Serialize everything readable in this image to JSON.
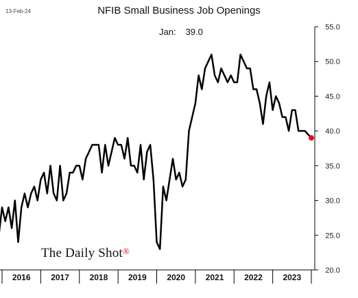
{
  "date_stamp": "13-Feb-24",
  "logo_text": "The Daily Shot",
  "logo_mark": "®",
  "annotation": {
    "label": "Jan:",
    "value": "39.0"
  },
  "colors": {
    "line": "#000000",
    "last_point": "#e0101a",
    "axis": "#000000",
    "text": "#222222"
  },
  "chart_data": {
    "type": "line",
    "title": "NFIB Small Business Job Openings",
    "xlabel": "",
    "ylabel": "",
    "ylim": [
      20,
      55
    ],
    "yticks": [
      20,
      25,
      30,
      35,
      40,
      45,
      50,
      55
    ],
    "ytick_labels": [
      "20.0",
      "25.0",
      "30.0",
      "35.0",
      "40.0",
      "45.0",
      "50.0",
      "55.0"
    ],
    "year_labels": [
      "2016",
      "2017",
      "2018",
      "2019",
      "2020",
      "2021",
      "2022",
      "2023"
    ],
    "x_start": "2016-01",
    "x_end": "2024-01",
    "grid": false,
    "series": [
      {
        "dates": [
          "2015-10",
          "2015-11",
          "2015-12",
          "2016-01",
          "2016-02",
          "2016-03",
          "2016-04",
          "2016-05",
          "2016-06",
          "2016-07",
          "2016-08",
          "2016-09",
          "2016-10",
          "2016-11",
          "2016-12",
          "2017-01",
          "2017-02",
          "2017-03",
          "2017-04",
          "2017-05",
          "2017-06",
          "2017-07",
          "2017-08",
          "2017-09",
          "2017-10",
          "2017-11",
          "2017-12",
          "2018-01",
          "2018-02",
          "2018-03",
          "2018-04",
          "2018-05",
          "2018-06",
          "2018-07",
          "2018-08",
          "2018-09",
          "2018-10",
          "2018-11",
          "2018-12",
          "2019-01",
          "2019-02",
          "2019-03",
          "2019-04",
          "2019-05",
          "2019-06",
          "2019-07",
          "2019-08",
          "2019-09",
          "2019-10",
          "2019-11",
          "2019-12",
          "2020-01",
          "2020-02",
          "2020-03",
          "2020-04",
          "2020-05",
          "2020-06",
          "2020-07",
          "2020-08",
          "2020-09",
          "2020-10",
          "2020-11",
          "2020-12",
          "2021-01",
          "2021-02",
          "2021-03",
          "2021-04",
          "2021-05",
          "2021-06",
          "2021-07",
          "2021-08",
          "2021-09",
          "2021-10",
          "2021-11",
          "2021-12",
          "2022-01",
          "2022-02",
          "2022-03",
          "2022-04",
          "2022-05",
          "2022-06",
          "2022-07",
          "2022-08",
          "2022-09",
          "2022-10",
          "2022-11",
          "2022-12",
          "2023-01",
          "2023-02",
          "2023-03",
          "2023-04",
          "2023-05",
          "2023-06",
          "2023-07",
          "2023-08",
          "2023-09",
          "2023-10",
          "2023-11",
          "2023-12",
          "2024-01"
        ],
        "values": [
          29,
          28,
          25,
          29,
          27,
          29,
          26,
          30,
          24,
          29,
          31,
          29,
          31,
          32,
          30,
          33,
          34,
          31,
          35,
          31,
          30,
          35,
          30,
          31,
          34,
          34,
          35,
          35,
          33,
          36,
          37,
          38,
          38,
          38,
          34,
          38,
          35,
          37,
          39,
          38,
          38,
          36,
          39,
          35,
          35,
          34,
          38,
          33,
          37,
          38,
          33,
          24,
          23,
          32,
          30,
          33,
          36,
          33,
          34,
          32,
          33,
          40,
          42,
          44,
          48,
          46,
          49,
          50,
          51,
          48,
          47,
          49,
          48,
          47,
          48,
          47,
          47,
          51,
          50,
          49,
          49,
          46,
          46,
          44,
          41,
          45,
          47,
          43,
          45,
          44,
          42,
          42,
          40,
          43,
          43,
          40,
          40,
          40,
          39.5,
          39
        ]
      }
    ]
  }
}
